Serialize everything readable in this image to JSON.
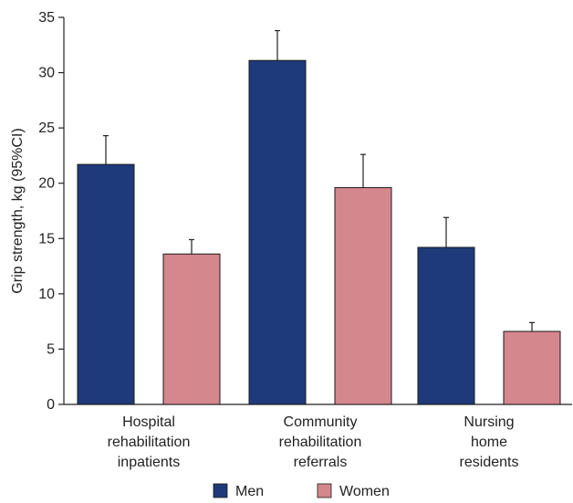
{
  "chart_data": {
    "type": "bar",
    "title": "",
    "xlabel": "",
    "ylabel": "Grip strength, kg (95%CI)",
    "ylim": [
      0,
      35
    ],
    "yticks": [
      0,
      5,
      10,
      15,
      20,
      25,
      30,
      35
    ],
    "grid": false,
    "legend_position": "bottom",
    "categories": [
      [
        "Hospital",
        "rehabilitation",
        "inpatients"
      ],
      [
        "Community",
        "rehabilitation",
        "referrals"
      ],
      [
        "Nursing",
        "home",
        "residents"
      ]
    ],
    "series": [
      {
        "name": "Men",
        "color": "#1f3a7a",
        "values": [
          21.7,
          31.1,
          14.2
        ],
        "ci_upper": [
          24.3,
          33.8,
          16.9
        ]
      },
      {
        "name": "Women",
        "color": "#d4878d",
        "values": [
          13.6,
          19.6,
          6.6
        ],
        "ci_upper": [
          14.9,
          22.6,
          7.4
        ]
      }
    ]
  }
}
